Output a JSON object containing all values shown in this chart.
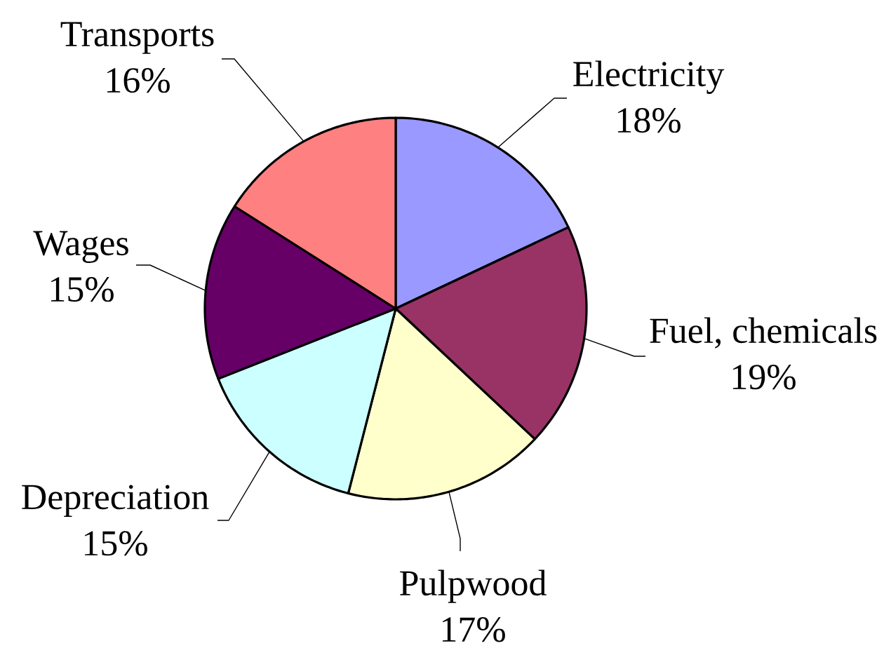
{
  "chart_data": {
    "type": "pie",
    "categories": [
      "Electricity",
      "Fuel, chemicals",
      "Pulpwood",
      "Depreciation",
      "Wages",
      "Transports"
    ],
    "values": [
      18,
      19,
      17,
      15,
      15,
      16
    ],
    "colors": [
      "#9999ff",
      "#993366",
      "#ffffcc",
      "#ccffff",
      "#660066",
      "#ff8080"
    ],
    "value_labels": [
      "18%",
      "19%",
      "17%",
      "15%",
      "15%",
      "16%"
    ]
  }
}
